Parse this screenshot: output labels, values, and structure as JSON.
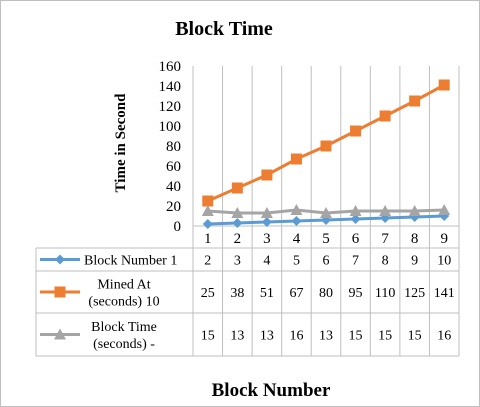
{
  "chart_data": {
    "type": "line",
    "title": "Block Time",
    "xlabel": "Block Number",
    "ylabel": "Time in Second",
    "categories": [
      "1",
      "2",
      "3",
      "4",
      "5",
      "6",
      "7",
      "8",
      "9"
    ],
    "ylim": [
      0,
      160
    ],
    "yticks": [
      0,
      20,
      40,
      60,
      80,
      100,
      120,
      140,
      160
    ],
    "grid": "vertical",
    "legend": "data-table",
    "series": [
      {
        "name": "Block Number 1",
        "label_lines": [
          "Block Number 1"
        ],
        "values": [
          2,
          3,
          4,
          5,
          6,
          7,
          8,
          9,
          10
        ],
        "color": "#5b9bd5",
        "marker": "diamond"
      },
      {
        "name": "Mined At (seconds) 10",
        "label_lines": [
          "Mined At",
          "(seconds) 10"
        ],
        "values": [
          25,
          38,
          51,
          67,
          80,
          95,
          110,
          125,
          141
        ],
        "color": "#ed7d31",
        "marker": "square"
      },
      {
        "name": "Block Time (seconds) -",
        "label_lines": [
          "Block Time",
          "(seconds) -"
        ],
        "values": [
          15,
          13,
          13,
          16,
          13,
          15,
          15,
          15,
          16
        ],
        "color": "#a5a5a5",
        "marker": "triangle"
      }
    ]
  }
}
